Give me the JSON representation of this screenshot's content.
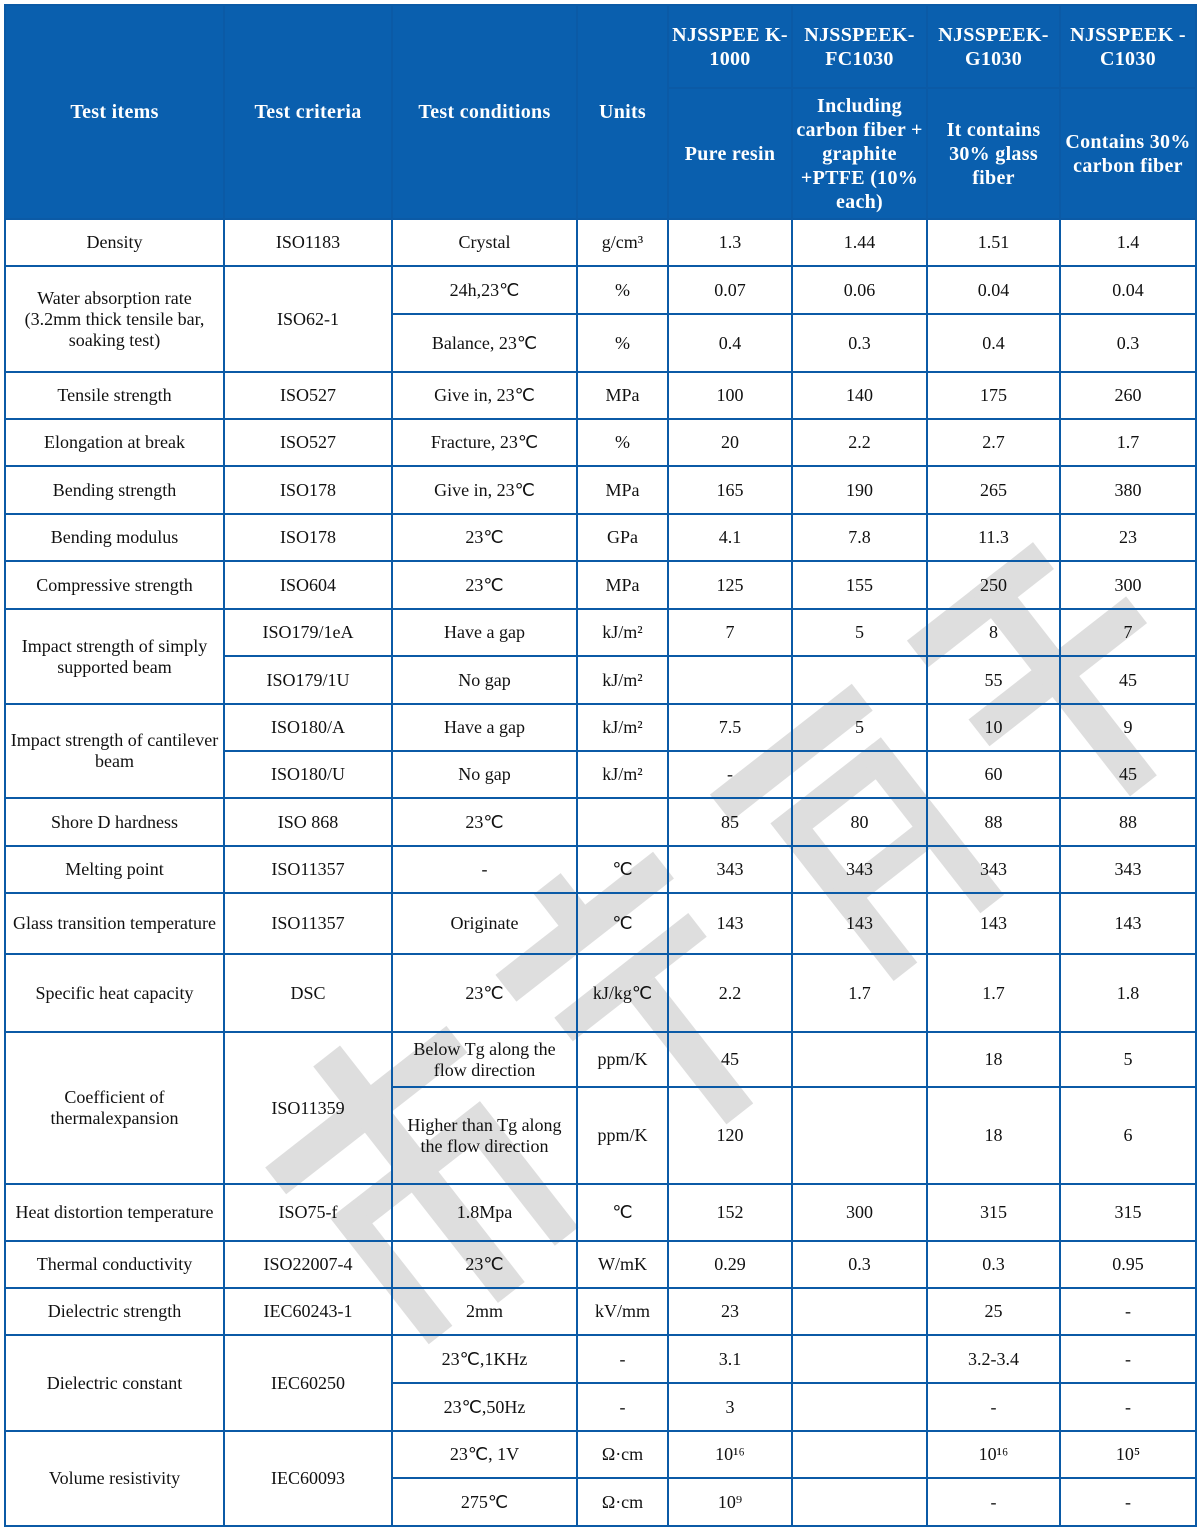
{
  "header": {
    "test_items": "Test items",
    "test_criteria": "Test criteria",
    "test_conditions": "Test conditions",
    "units": "Units",
    "products": [
      {
        "name": "NJSSPEE K-1000",
        "desc": "Pure resin"
      },
      {
        "name": "NJSSPEEK- FC1030",
        "desc": "Including carbon fiber + graphite +PTFE (10% each)"
      },
      {
        "name": "NJSSPEEK- G1030",
        "desc": "It contains 30% glass fiber"
      },
      {
        "name": "NJSSPEEK -C1030",
        "desc": "Contains 30% carbon fiber"
      }
    ]
  },
  "rows": [
    [
      {
        "t": "Density"
      },
      {
        "t": "ISO1183"
      },
      {
        "t": "Crystal"
      },
      {
        "t": "g/cm³"
      },
      {
        "t": "1.3"
      },
      {
        "t": "1.44"
      },
      {
        "t": "1.51"
      },
      {
        "t": "1.4"
      }
    ],
    [
      {
        "t": "Water absorption rate (3.2mm thick tensile bar, soaking test)",
        "rs": 2
      },
      {
        "t": "ISO62-1",
        "rs": 2
      },
      {
        "t": "24h,23℃"
      },
      {
        "t": "%"
      },
      {
        "t": "0.07"
      },
      {
        "t": "0.06"
      },
      {
        "t": "0.04"
      },
      {
        "t": "0.04"
      }
    ],
    [
      {
        "t": "Balance, 23℃"
      },
      {
        "t": "%"
      },
      {
        "t": "0.4"
      },
      {
        "t": "0.3"
      },
      {
        "t": "0.4"
      },
      {
        "t": "0.3"
      }
    ],
    [
      {
        "t": "Tensile strength"
      },
      {
        "t": "ISO527"
      },
      {
        "t": "Give in, 23℃"
      },
      {
        "t": "MPa"
      },
      {
        "t": "100"
      },
      {
        "t": "140"
      },
      {
        "t": "175"
      },
      {
        "t": "260"
      }
    ],
    [
      {
        "t": "Elongation at break"
      },
      {
        "t": "ISO527"
      },
      {
        "t": "Fracture, 23℃"
      },
      {
        "t": "%"
      },
      {
        "t": "20"
      },
      {
        "t": "2.2"
      },
      {
        "t": "2.7"
      },
      {
        "t": "1.7"
      }
    ],
    [
      {
        "t": "Bending strength"
      },
      {
        "t": "ISO178"
      },
      {
        "t": "Give in, 23℃"
      },
      {
        "t": "MPa"
      },
      {
        "t": "165"
      },
      {
        "t": "190"
      },
      {
        "t": "265"
      },
      {
        "t": "380"
      }
    ],
    [
      {
        "t": "Bending modulus"
      },
      {
        "t": "ISO178"
      },
      {
        "t": "23℃"
      },
      {
        "t": "GPa"
      },
      {
        "t": "4.1"
      },
      {
        "t": "7.8"
      },
      {
        "t": "11.3"
      },
      {
        "t": "23"
      }
    ],
    [
      {
        "t": "Compressive strength"
      },
      {
        "t": "ISO604"
      },
      {
        "t": "23℃"
      },
      {
        "t": "MPa"
      },
      {
        "t": "125"
      },
      {
        "t": "155"
      },
      {
        "t": "250"
      },
      {
        "t": "300"
      }
    ],
    [
      {
        "t": "Impact strength of simply supported beam",
        "rs": 2
      },
      {
        "t": "ISO179/1eA"
      },
      {
        "t": "Have a gap"
      },
      {
        "t": "kJ/m²"
      },
      {
        "t": "7"
      },
      {
        "t": "5"
      },
      {
        "t": "8"
      },
      {
        "t": "7"
      }
    ],
    [
      {
        "t": "ISO179/1U"
      },
      {
        "t": "No gap"
      },
      {
        "t": "kJ/m²"
      },
      {
        "t": ""
      },
      {
        "t": ""
      },
      {
        "t": "55"
      },
      {
        "t": "45"
      }
    ],
    [
      {
        "t": "Impact strength of cantilever beam",
        "rs": 2
      },
      {
        "t": "ISO180/A"
      },
      {
        "t": "Have a gap"
      },
      {
        "t": "kJ/m²"
      },
      {
        "t": "7.5"
      },
      {
        "t": "5"
      },
      {
        "t": "10"
      },
      {
        "t": "9"
      }
    ],
    [
      {
        "t": "ISO180/U"
      },
      {
        "t": "No gap"
      },
      {
        "t": "kJ/m²"
      },
      {
        "t": "-"
      },
      {
        "t": ""
      },
      {
        "t": "60"
      },
      {
        "t": "45"
      }
    ],
    [
      {
        "t": "Shore D hardness"
      },
      {
        "t": "ISO 868"
      },
      {
        "t": "23℃"
      },
      {
        "t": ""
      },
      {
        "t": "85"
      },
      {
        "t": "80"
      },
      {
        "t": "88"
      },
      {
        "t": "88"
      }
    ],
    [
      {
        "t": "Melting point"
      },
      {
        "t": "ISO11357"
      },
      {
        "t": "-"
      },
      {
        "t": "℃"
      },
      {
        "t": "343"
      },
      {
        "t": "343"
      },
      {
        "t": "343"
      },
      {
        "t": "343"
      }
    ],
    [
      {
        "t": "Glass transition temperature"
      },
      {
        "t": "ISO11357"
      },
      {
        "t": "Originate"
      },
      {
        "t": "℃"
      },
      {
        "t": "143"
      },
      {
        "t": "143"
      },
      {
        "t": "143"
      },
      {
        "t": "143"
      }
    ],
    [
      {
        "t": "Specific heat capacity"
      },
      {
        "t": "DSC"
      },
      {
        "t": "23℃"
      },
      {
        "t": "kJ/kg℃"
      },
      {
        "t": "2.2"
      },
      {
        "t": "1.7"
      },
      {
        "t": "1.7"
      },
      {
        "t": "1.8"
      }
    ],
    [
      {
        "t": "Coefficient of thermalexpansion",
        "rs": 2
      },
      {
        "t": "ISO11359",
        "rs": 2
      },
      {
        "t": "Below Tg along the flow direction"
      },
      {
        "t": "ppm/K"
      },
      {
        "t": "45"
      },
      {
        "t": ""
      },
      {
        "t": "18"
      },
      {
        "t": "5"
      }
    ],
    [
      {
        "t": "Higher than Tg along the flow direction"
      },
      {
        "t": "ppm/K"
      },
      {
        "t": "120"
      },
      {
        "t": ""
      },
      {
        "t": "18"
      },
      {
        "t": "6"
      }
    ],
    [
      {
        "t": "Heat distortion temperature"
      },
      {
        "t": "ISO75-f"
      },
      {
        "t": "1.8Mpa"
      },
      {
        "t": "℃"
      },
      {
        "t": "152"
      },
      {
        "t": "300"
      },
      {
        "t": "315"
      },
      {
        "t": "315"
      }
    ],
    [
      {
        "t": "Thermal conductivity"
      },
      {
        "t": "ISO22007-4"
      },
      {
        "t": "23℃"
      },
      {
        "t": "W/mK"
      },
      {
        "t": "0.29"
      },
      {
        "t": "0.3"
      },
      {
        "t": "0.3"
      },
      {
        "t": "0.95"
      }
    ],
    [
      {
        "t": "Dielectric strength"
      },
      {
        "t": "IEC60243-1"
      },
      {
        "t": "2mm"
      },
      {
        "t": "kV/mm"
      },
      {
        "t": "23"
      },
      {
        "t": ""
      },
      {
        "t": "25"
      },
      {
        "t": "-"
      }
    ],
    [
      {
        "t": "Dielectric constant",
        "rs": 2
      },
      {
        "t": "IEC60250",
        "rs": 2
      },
      {
        "t": "23℃,1KHz"
      },
      {
        "t": "-"
      },
      {
        "t": "3.1"
      },
      {
        "t": ""
      },
      {
        "t": "3.2-3.4"
      },
      {
        "t": "-"
      }
    ],
    [
      {
        "t": "23℃,50Hz"
      },
      {
        "t": "-"
      },
      {
        "t": "3"
      },
      {
        "t": ""
      },
      {
        "t": "-"
      },
      {
        "t": "-"
      }
    ],
    [
      {
        "t": "Volume resistivity",
        "rs": 2
      },
      {
        "t": "IEC60093",
        "rs": 2
      },
      {
        "t": "23℃, 1V"
      },
      {
        "t": "Ω·cm"
      },
      {
        "t": "10¹⁶"
      },
      {
        "t": ""
      },
      {
        "t": "10¹⁶"
      },
      {
        "t": "10⁵"
      }
    ],
    [
      {
        "t": "275℃"
      },
      {
        "t": "Ω·cm"
      },
      {
        "t": "10⁹"
      },
      {
        "t": ""
      },
      {
        "t": "-"
      },
      {
        "t": "-"
      }
    ]
  ],
  "colors": {
    "header_bg": "#0a5fae",
    "border": "#0b5aa6",
    "watermark": "#d9d9d9"
  }
}
